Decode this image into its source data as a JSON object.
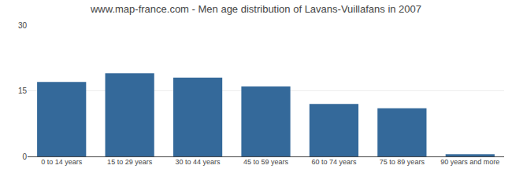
{
  "chart_data": {
    "type": "bar",
    "title": "www.map-france.com - Men age distribution of Lavans-Vuillafans in 2007",
    "categories": [
      "0 to 14 years",
      "15 to 29 years",
      "30 to 44 years",
      "45 to 59 years",
      "60 to 74 years",
      "75 to 89 years",
      "90 years and more"
    ],
    "values": [
      17,
      19,
      18,
      16,
      12,
      11,
      0.5
    ],
    "color": "#34699a",
    "ylim": [
      0,
      30
    ],
    "yticks": [
      0,
      15,
      30
    ],
    "grid": true
  }
}
